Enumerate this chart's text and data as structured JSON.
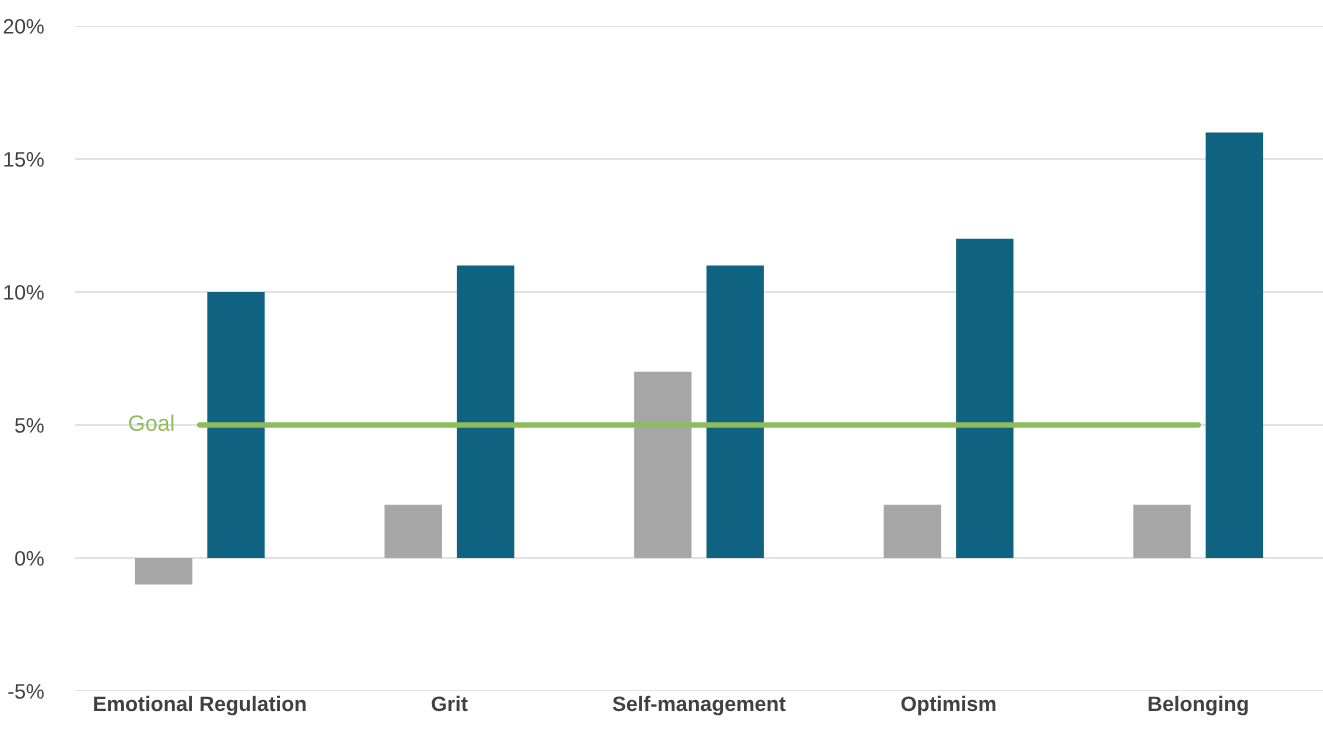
{
  "chart_data": {
    "type": "bar",
    "categories": [
      "Emotional Regulation",
      "Grit",
      "Self-management",
      "Optimism",
      "Belonging"
    ],
    "series": [
      {
        "color": "#a6a6a6",
        "values": [
          -1,
          2,
          7,
          2,
          2
        ]
      },
      {
        "color": "#0f6280",
        "values": [
          10,
          11,
          11,
          12,
          16
        ]
      }
    ],
    "ylim": [
      -5,
      20
    ],
    "yticks": [
      {
        "value": -5,
        "label": "-5%"
      },
      {
        "value": 0,
        "label": "0%"
      },
      {
        "value": 5,
        "label": "5%"
      },
      {
        "value": 10,
        "label": "10%"
      },
      {
        "value": 15,
        "label": "15%"
      },
      {
        "value": 20,
        "label": "20%"
      }
    ],
    "grid": "y",
    "ref_lines": [
      {
        "axis": "y",
        "value": 5,
        "label": "Goal",
        "color": "#8fbc5a"
      }
    ]
  }
}
